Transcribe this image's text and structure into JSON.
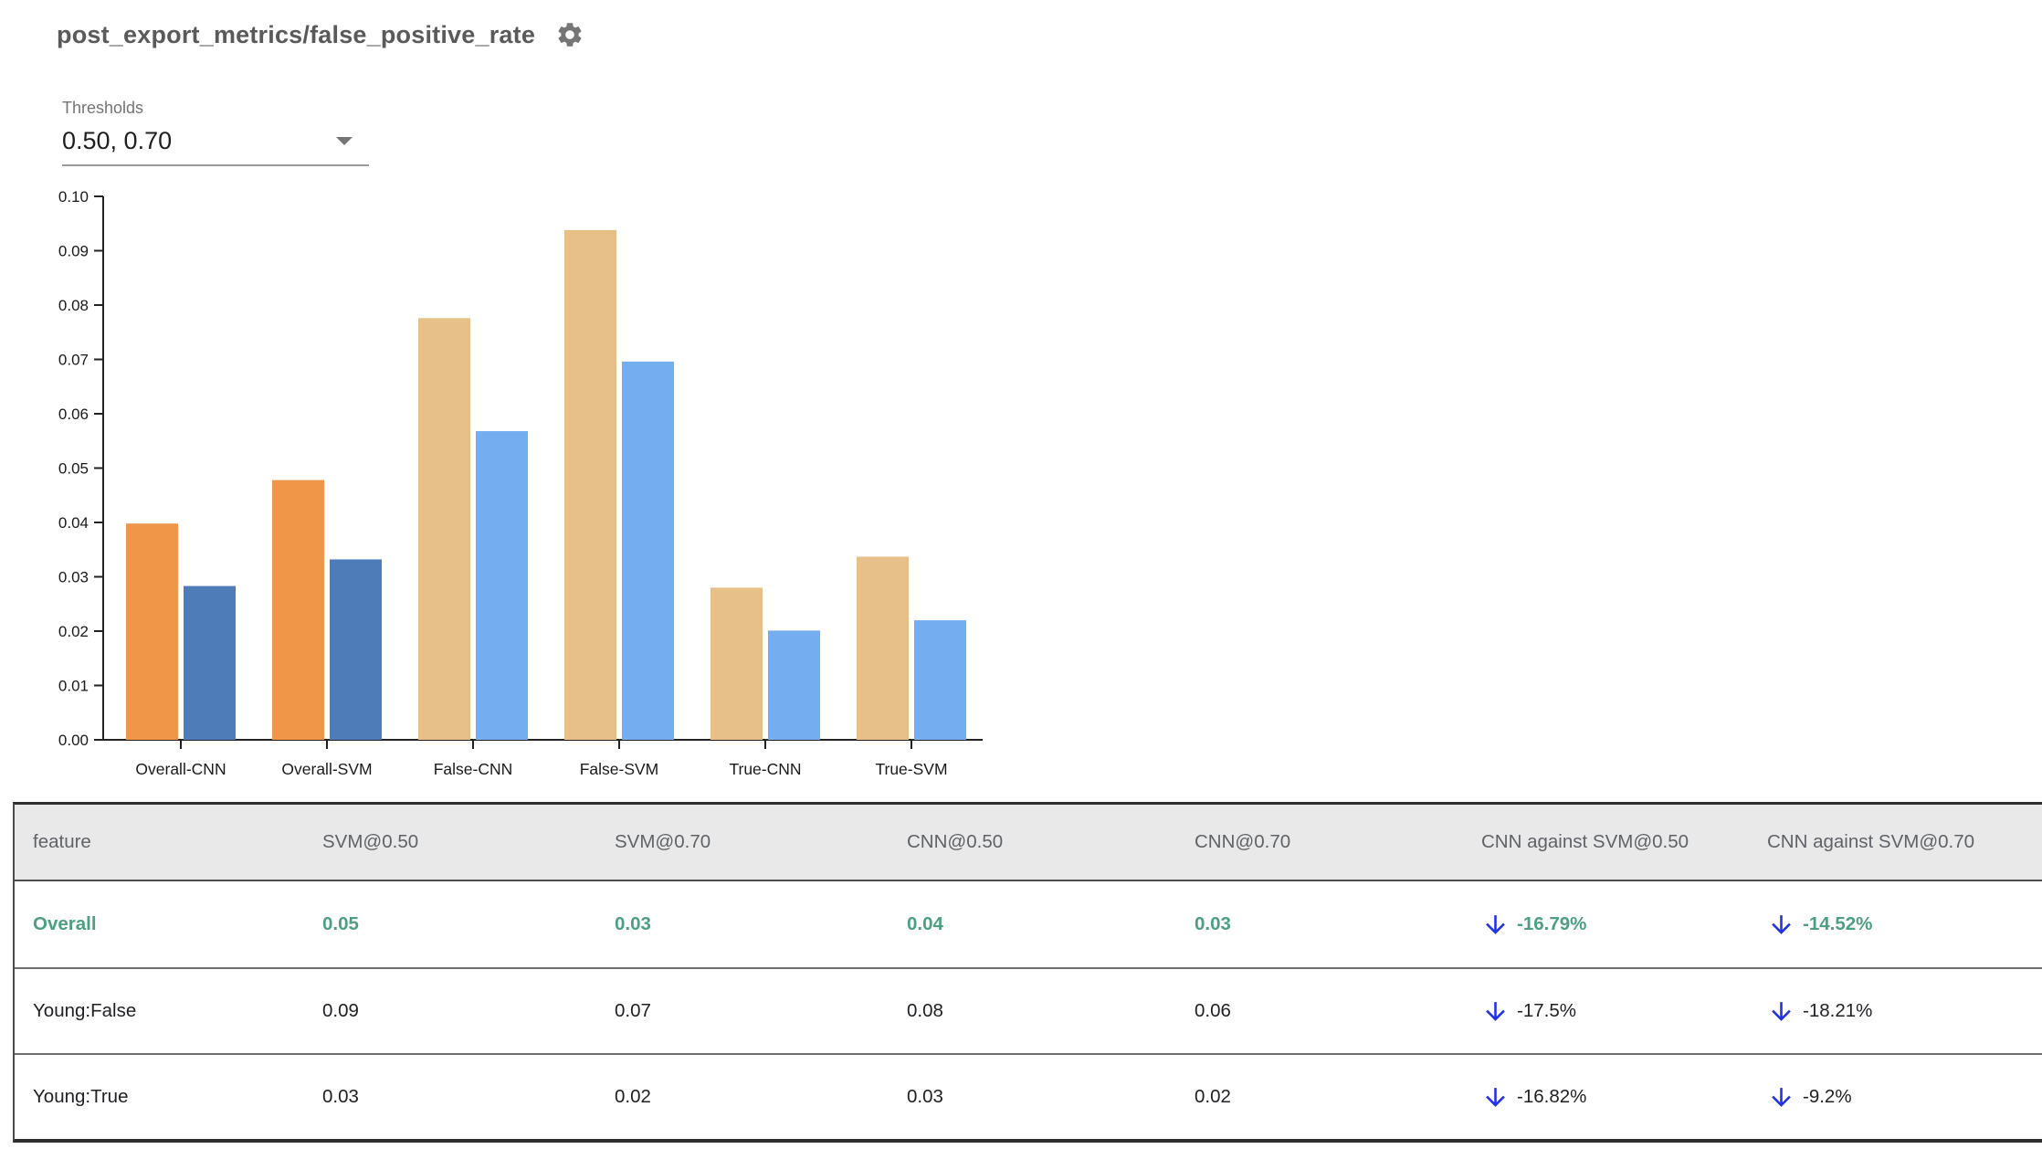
{
  "header": {
    "title": "post_export_metrics/false_positive_rate"
  },
  "thresholds": {
    "label": "Thresholds",
    "value": "0.50, 0.70"
  },
  "chart_data": {
    "type": "bar",
    "title": "",
    "xlabel": "",
    "ylabel": "",
    "categories": [
      "Overall-CNN",
      "Overall-SVM",
      "False-CNN",
      "False-SVM",
      "True-CNN",
      "True-SVM"
    ],
    "series": [
      {
        "name": "threshold 0.50",
        "values": [
          0.0398,
          0.0478,
          0.0776,
          0.0938,
          0.028,
          0.0337
        ]
      },
      {
        "name": "threshold 0.70",
        "values": [
          0.0283,
          0.0332,
          0.0568,
          0.0696,
          0.0201,
          0.022
        ]
      }
    ],
    "highlight": [
      true,
      true,
      false,
      false,
      false,
      false
    ],
    "ylim": [
      0,
      0.1
    ],
    "ytick_step": 0.01,
    "grid": false,
    "legend": "none",
    "bar_colors": {
      "highlight": [
        "#F09648",
        "#4D7CB8"
      ],
      "normal": [
        "#E7C089",
        "#74ADF0"
      ]
    }
  },
  "table": {
    "columns": [
      "feature",
      "SVM@0.50",
      "SVM@0.70",
      "CNN@0.50",
      "CNN@0.70",
      "CNN against SVM@0.50",
      "CNN against SVM@0.70"
    ],
    "rows": [
      {
        "feature": "Overall",
        "values": [
          "0.05",
          "0.03",
          "0.04",
          "0.03"
        ],
        "changes": [
          "-16.79%",
          "-14.52%"
        ],
        "trend": [
          "down",
          "down"
        ]
      },
      {
        "feature": "Young:False",
        "values": [
          "0.09",
          "0.07",
          "0.08",
          "0.06"
        ],
        "changes": [
          "-17.5%",
          "-18.21%"
        ],
        "trend": [
          "down",
          "down"
        ]
      },
      {
        "feature": "Young:True",
        "values": [
          "0.03",
          "0.02",
          "0.03",
          "0.02"
        ],
        "changes": [
          "-16.82%",
          "-9.2%"
        ],
        "trend": [
          "down",
          "down"
        ]
      }
    ]
  },
  "colors": {
    "title_text": "#5a5a5a",
    "select_underline": "#9a9a9a",
    "header_bg": "#e9e9e9",
    "header_text": "#5f6368",
    "green": "#4c9f80",
    "arrow_blue": "#2332e3",
    "axis": "#222222"
  }
}
